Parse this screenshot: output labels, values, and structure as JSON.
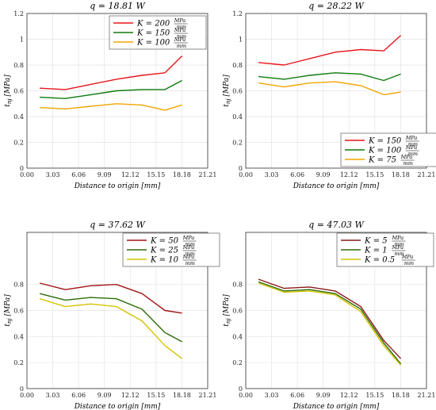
{
  "chart_data": [
    {
      "type": "line",
      "title": "q = 18.81 W",
      "xlabel": "Distance to origin [mm]",
      "ylabel": "t_nj [MPa]",
      "xlim": [
        0,
        21.21
      ],
      "ylim": [
        0,
        1.2
      ],
      "xticks": [
        "0.00",
        "3.03",
        "6.06",
        "9.09",
        "12.12",
        "15.15",
        "18.18",
        "21.21"
      ],
      "yticks": [
        "0",
        "0.2",
        "0.4",
        "0.6",
        "0.8",
        "1",
        "1.2"
      ],
      "grid": true,
      "legend_position": "top-right",
      "x": [
        1.5,
        4.5,
        7.5,
        10.5,
        13.5,
        16.2,
        18.2
      ],
      "series": [
        {
          "name": "K = 200",
          "unit_num": "MPa",
          "unit_den": "mm",
          "color": "#e8141c",
          "values": [
            0.62,
            0.61,
            0.65,
            0.69,
            0.72,
            0.74,
            0.87
          ]
        },
        {
          "name": "K = 150",
          "unit_num": "MPa",
          "unit_den": "mm",
          "color": "#0f7a0f",
          "values": [
            0.55,
            0.54,
            0.57,
            0.6,
            0.61,
            0.61,
            0.68
          ]
        },
        {
          "name": "K = 100",
          "unit_num": "MPa",
          "unit_den": "mm",
          "color": "#f0a500",
          "values": [
            0.47,
            0.46,
            0.48,
            0.5,
            0.49,
            0.45,
            0.49
          ]
        }
      ]
    },
    {
      "type": "line",
      "title": "q = 28.22 W",
      "xlabel": "Distance to origin [mm]",
      "ylabel": "t_nj [MPa]",
      "xlim": [
        0,
        21.21
      ],
      "ylim": [
        0,
        1.2
      ],
      "xticks": [
        "0.00",
        "3.03",
        "6.06",
        "9.09",
        "12.12",
        "15.15",
        "18.18",
        "21.21"
      ],
      "yticks": [
        "0",
        "0.2",
        "0.4",
        "0.6",
        "0.8",
        "1",
        "1.2"
      ],
      "grid": true,
      "legend_position": "bottom-right",
      "x": [
        1.5,
        4.5,
        7.5,
        10.5,
        13.5,
        16.2,
        18.2
      ],
      "series": [
        {
          "name": "K = 150",
          "unit_num": "MPa",
          "unit_den": "mm",
          "color": "#e8141c",
          "values": [
            0.82,
            0.8,
            0.85,
            0.9,
            0.92,
            0.91,
            1.03
          ]
        },
        {
          "name": "K = 100",
          "unit_num": "MPa",
          "unit_den": "mm",
          "color": "#0f7a0f",
          "values": [
            0.71,
            0.69,
            0.72,
            0.74,
            0.73,
            0.68,
            0.73
          ]
        },
        {
          "name": "K = 75",
          "unit_num": "MPa",
          "unit_den": "mm",
          "color": "#f0a500",
          "values": [
            0.66,
            0.63,
            0.66,
            0.67,
            0.64,
            0.57,
            0.59
          ]
        }
      ]
    },
    {
      "type": "line",
      "title": "q = 37.62 W",
      "xlabel": "Distance to origin [mm]",
      "ylabel": "t_nj [MPa]",
      "xlim": [
        0,
        21.21
      ],
      "ylim": [
        0,
        1.2
      ],
      "xticks": [
        "0.00",
        "3.03",
        "6.06",
        "9.09",
        "12.12",
        "15.15",
        "18.18",
        "21.21"
      ],
      "yticks": [
        "0",
        "0.2",
        "0.4",
        "0.6",
        "0.8"
      ],
      "grid": true,
      "legend_position": "top-right",
      "x": [
        1.5,
        4.5,
        7.5,
        10.5,
        13.5,
        16.2,
        18.2
      ],
      "series": [
        {
          "name": "K = 50",
          "unit_num": "MPa",
          "unit_den": "mm",
          "color": "#a31515",
          "values": [
            0.81,
            0.76,
            0.79,
            0.8,
            0.73,
            0.6,
            0.58
          ]
        },
        {
          "name": "K = 25",
          "unit_num": "MPa",
          "unit_den": "mm",
          "color": "#2d6b0a",
          "values": [
            0.73,
            0.68,
            0.7,
            0.69,
            0.61,
            0.43,
            0.36
          ]
        },
        {
          "name": "K = 10",
          "unit_num": "MPa",
          "unit_den": "mm",
          "color": "#d4c400",
          "values": [
            0.69,
            0.63,
            0.65,
            0.63,
            0.52,
            0.33,
            0.23
          ]
        }
      ]
    },
    {
      "type": "line",
      "title": "q = 47.03 W",
      "xlabel": "Distance to origin [mm]",
      "ylabel": "t_nj [MPa]",
      "xlim": [
        0,
        21.21
      ],
      "ylim": [
        0,
        1.2
      ],
      "xticks": [
        "0.00",
        "3.03",
        "6.06",
        "9.09",
        "12.12",
        "15.15",
        "18.18",
        "21.21"
      ],
      "yticks": [
        "0",
        "0.2",
        "0.4",
        "0.6",
        "0.8"
      ],
      "grid": true,
      "legend_position": "top-right",
      "x": [
        1.5,
        4.5,
        7.5,
        10.5,
        13.5,
        16.2,
        18.2
      ],
      "series": [
        {
          "name": "K = 5",
          "unit_num": "MPa",
          "unit_den": "mm",
          "color": "#8b1a1a",
          "values": [
            0.84,
            0.77,
            0.78,
            0.75,
            0.63,
            0.37,
            0.23
          ]
        },
        {
          "name": "K = 1",
          "unit_num": "MPa",
          "unit_den": "mm",
          "color": "#2d6b0a",
          "values": [
            0.82,
            0.75,
            0.76,
            0.73,
            0.61,
            0.35,
            0.19
          ]
        },
        {
          "name": "K = 0.5",
          "unit_num": "MPa",
          "unit_den": "mm",
          "color": "#d4c400",
          "values": [
            0.81,
            0.74,
            0.75,
            0.72,
            0.59,
            0.33,
            0.18
          ]
        }
      ]
    }
  ]
}
